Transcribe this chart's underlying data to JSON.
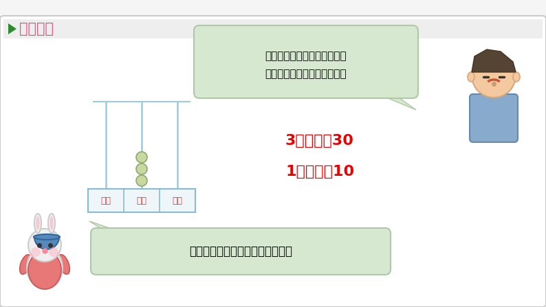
{
  "bg_color": "#f5f5f5",
  "outer_bg": "#ffffff",
  "title_arrow_color": "#2d8a2d",
  "title_text_color": "#e05080",
  "title_text": "新知探究",
  "speech_top_text_line1": "明白啦！十位上的数表示几个",
  "speech_top_text_line2": "十，个位上的数表示几个一。",
  "speech_top_color": "#d6e8d0",
  "speech_top_border": "#b0c8a8",
  "speech_bottom_text": "十位上有几个珠子就表示几个十。",
  "speech_bottom_color": "#d6e8d0",
  "speech_bottom_border": "#b0c8a8",
  "abacus_labels": [
    "百位",
    "十位",
    "个位"
  ],
  "abacus_label_color": "#ee3333",
  "abacus_box_border": "#88bbcc",
  "abacus_box_fill": "#eef6fa",
  "abacus_rod_color": "#99ccdd",
  "bead_fill": "#c8d8a0",
  "bead_border": "#90a870",
  "text1": "3个十，是30",
  "text2": "1个十，是10",
  "text_color": "#ee0000",
  "text_fontsize": 16
}
